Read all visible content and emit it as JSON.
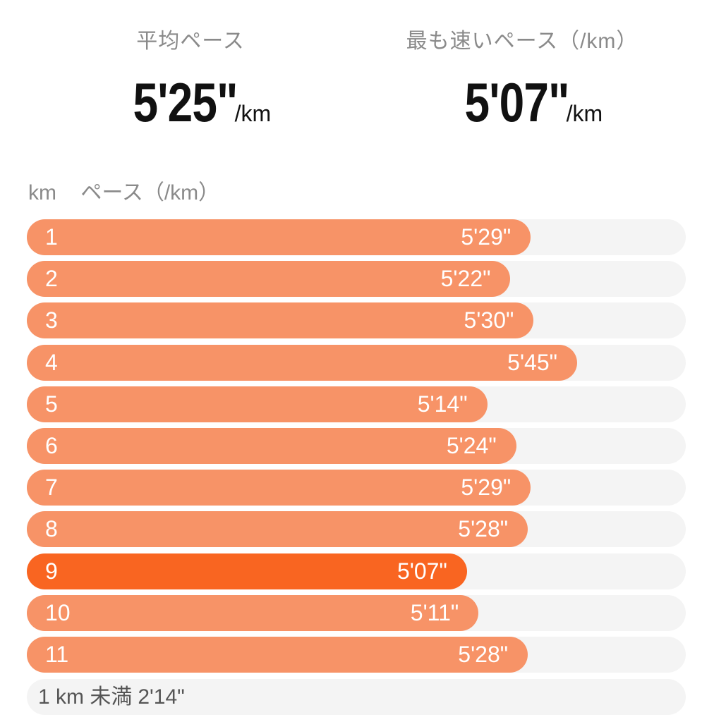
{
  "summary": {
    "average": {
      "label": "平均ペース",
      "value": "5'25\"",
      "unit": "/km"
    },
    "fastest": {
      "label": "最も速いペース（/km）",
      "value": "5'07\"",
      "unit": "/km"
    }
  },
  "table": {
    "col_km": "km",
    "col_pace": "ペース（/km）"
  },
  "colors": {
    "bar": "#f79367",
    "fastest_bar": "#f96521",
    "track": "#f4f4f4"
  },
  "splits": [
    {
      "km": "1",
      "pace": "5'29\"",
      "seconds": 329
    },
    {
      "km": "2",
      "pace": "5'22\"",
      "seconds": 322
    },
    {
      "km": "3",
      "pace": "5'30\"",
      "seconds": 330
    },
    {
      "km": "4",
      "pace": "5'45\"",
      "seconds": 345
    },
    {
      "km": "5",
      "pace": "5'14\"",
      "seconds": 314
    },
    {
      "km": "6",
      "pace": "5'24\"",
      "seconds": 324
    },
    {
      "km": "7",
      "pace": "5'29\"",
      "seconds": 329
    },
    {
      "km": "8",
      "pace": "5'28\"",
      "seconds": 328
    },
    {
      "km": "9",
      "pace": "5'07\"",
      "seconds": 307,
      "fastest": true
    },
    {
      "km": "10",
      "pace": "5'11\"",
      "seconds": 311
    },
    {
      "km": "11",
      "pace": "5'28\"",
      "seconds": 328
    }
  ],
  "remainder": {
    "label": "1 km 未満",
    "pace": "2'14\""
  }
}
